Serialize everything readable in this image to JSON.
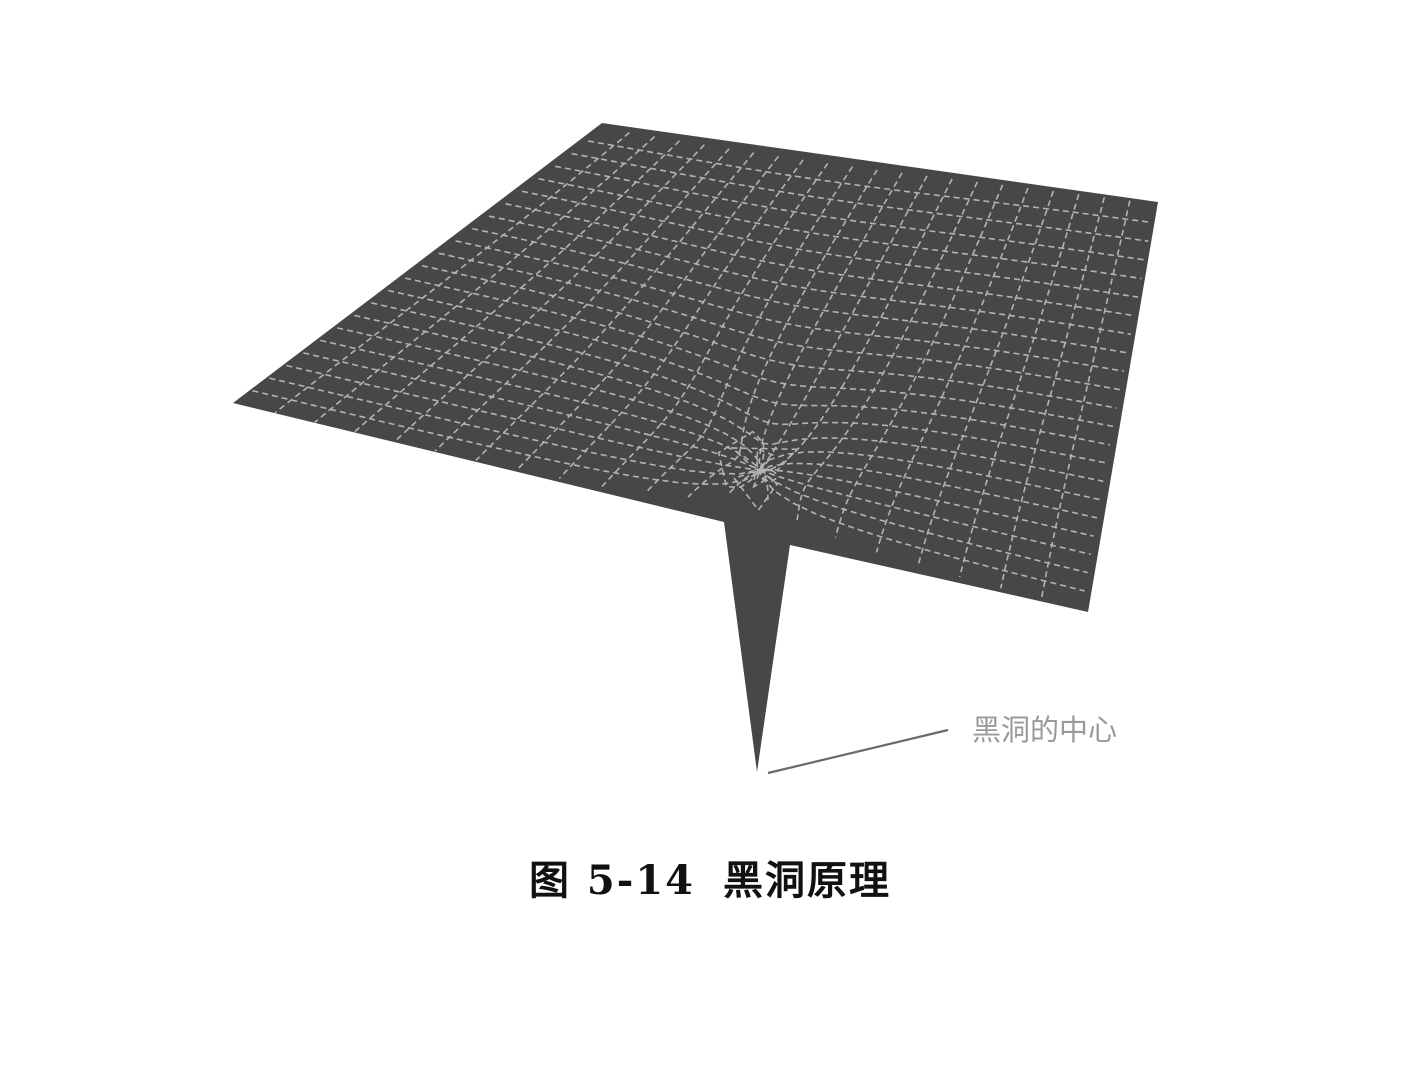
{
  "diagram": {
    "annotation_label": "黑洞的中心",
    "colors": {
      "surface": "#474747",
      "grid": "#d8d8d8",
      "leader": "#6a6a6a",
      "label": "#9a9a9a"
    }
  },
  "caption": {
    "number": "图 5-14",
    "title": "黑洞原理"
  }
}
